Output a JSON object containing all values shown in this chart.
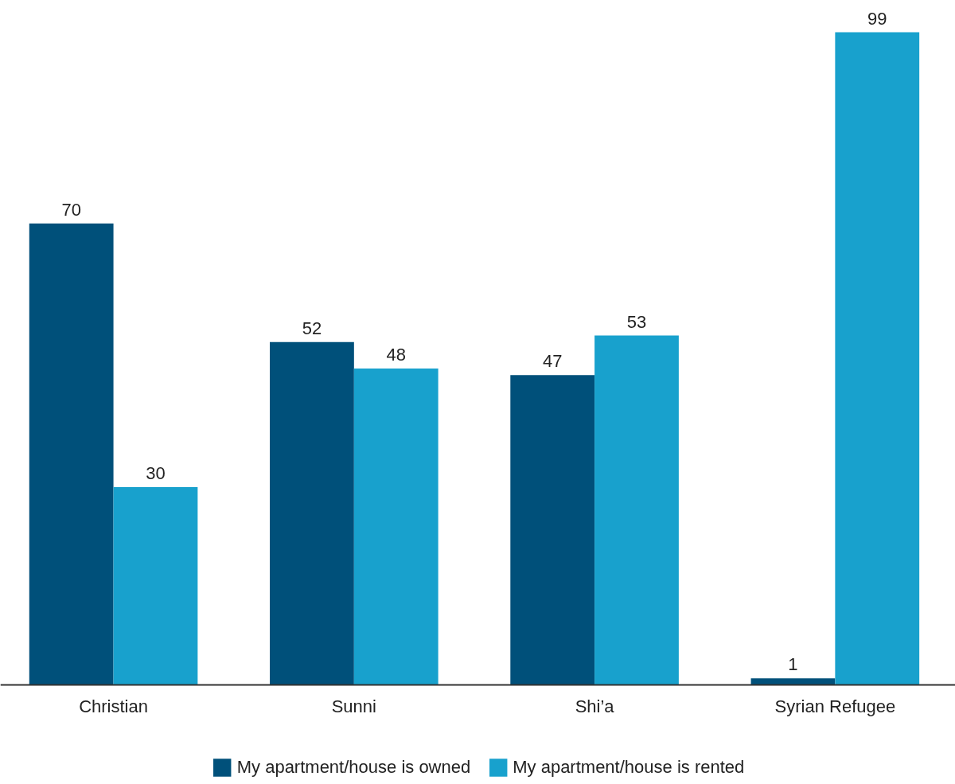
{
  "chart_data": {
    "type": "bar",
    "categories": [
      "Christian",
      "Sunni",
      "Shi’a",
      "Syrian Refugee"
    ],
    "series": [
      {
        "name": "My apartment/house is owned",
        "color": "#00507a",
        "values": [
          70,
          52,
          47,
          1
        ]
      },
      {
        "name": "My apartment/house is rented",
        "color": "#18a1cd",
        "values": [
          30,
          48,
          53,
          99
        ]
      }
    ],
    "data_labels": true,
    "legend": "bottom",
    "grid": false
  }
}
